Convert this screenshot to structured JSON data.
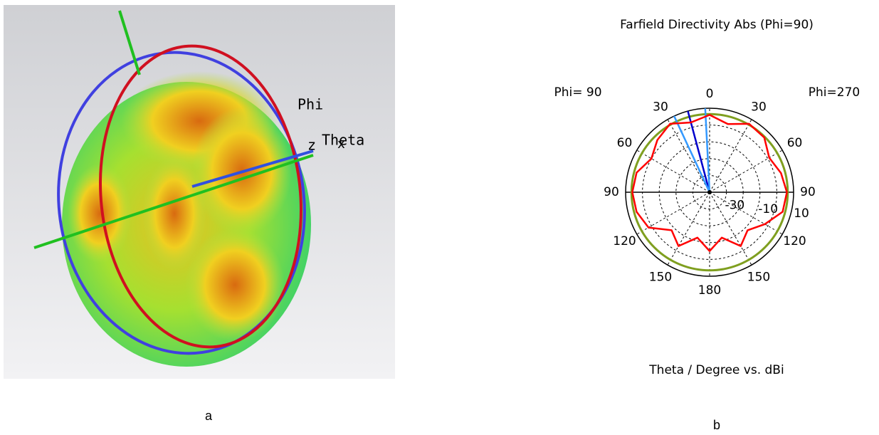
{
  "panel_a": {
    "caption": "a",
    "axis_labels": [
      "Phi",
      "Theta",
      "z",
      "x"
    ]
  },
  "chart_data": {
    "type": "polar",
    "title": "Farfield Directivity Abs (Phi=90)",
    "xlabel": "Theta / Degree vs. dBi",
    "side_labels": [
      "Phi= 90",
      "Phi=270"
    ],
    "caption": "b",
    "x": [
      0,
      15,
      30,
      45,
      60,
      75,
      90,
      105,
      120,
      135,
      150,
      165,
      180,
      195,
      210,
      225,
      240,
      255,
      270,
      285,
      300,
      315,
      330,
      345
    ],
    "series": [
      {
        "color": "#ff0000",
        "values": [
          6,
          2,
          7,
          6,
          1,
          4,
          6,
          5,
          -2,
          -8,
          -3,
          -12,
          -5,
          -12,
          -3,
          -8,
          2,
          5,
          6,
          5,
          0,
          4,
          7,
          3
        ]
      }
    ],
    "reference_level": 6.5,
    "reference_color": "#7f9f1f",
    "beam_lines": [
      {
        "angle": 345,
        "color": "#0000cc"
      },
      {
        "angle": 335,
        "color": "#3399ff"
      },
      {
        "angle": 357,
        "color": "#3399ff"
      }
    ],
    "rlim": [
      -40,
      10
    ],
    "rticks": [
      -30,
      -10,
      10
    ],
    "rings": [
      -30,
      -20,
      -10,
      0,
      10
    ],
    "angle_ticks": [
      0,
      30,
      60,
      90,
      120,
      150,
      180,
      {
        "value": 210,
        "label": "150"
      },
      {
        "value": 240,
        "label": "120"
      },
      {
        "value": 270,
        "label": "90"
      },
      {
        "value": 300,
        "label": "60"
      },
      {
        "value": 330,
        "label": "30"
      }
    ],
    "grid": true
  }
}
